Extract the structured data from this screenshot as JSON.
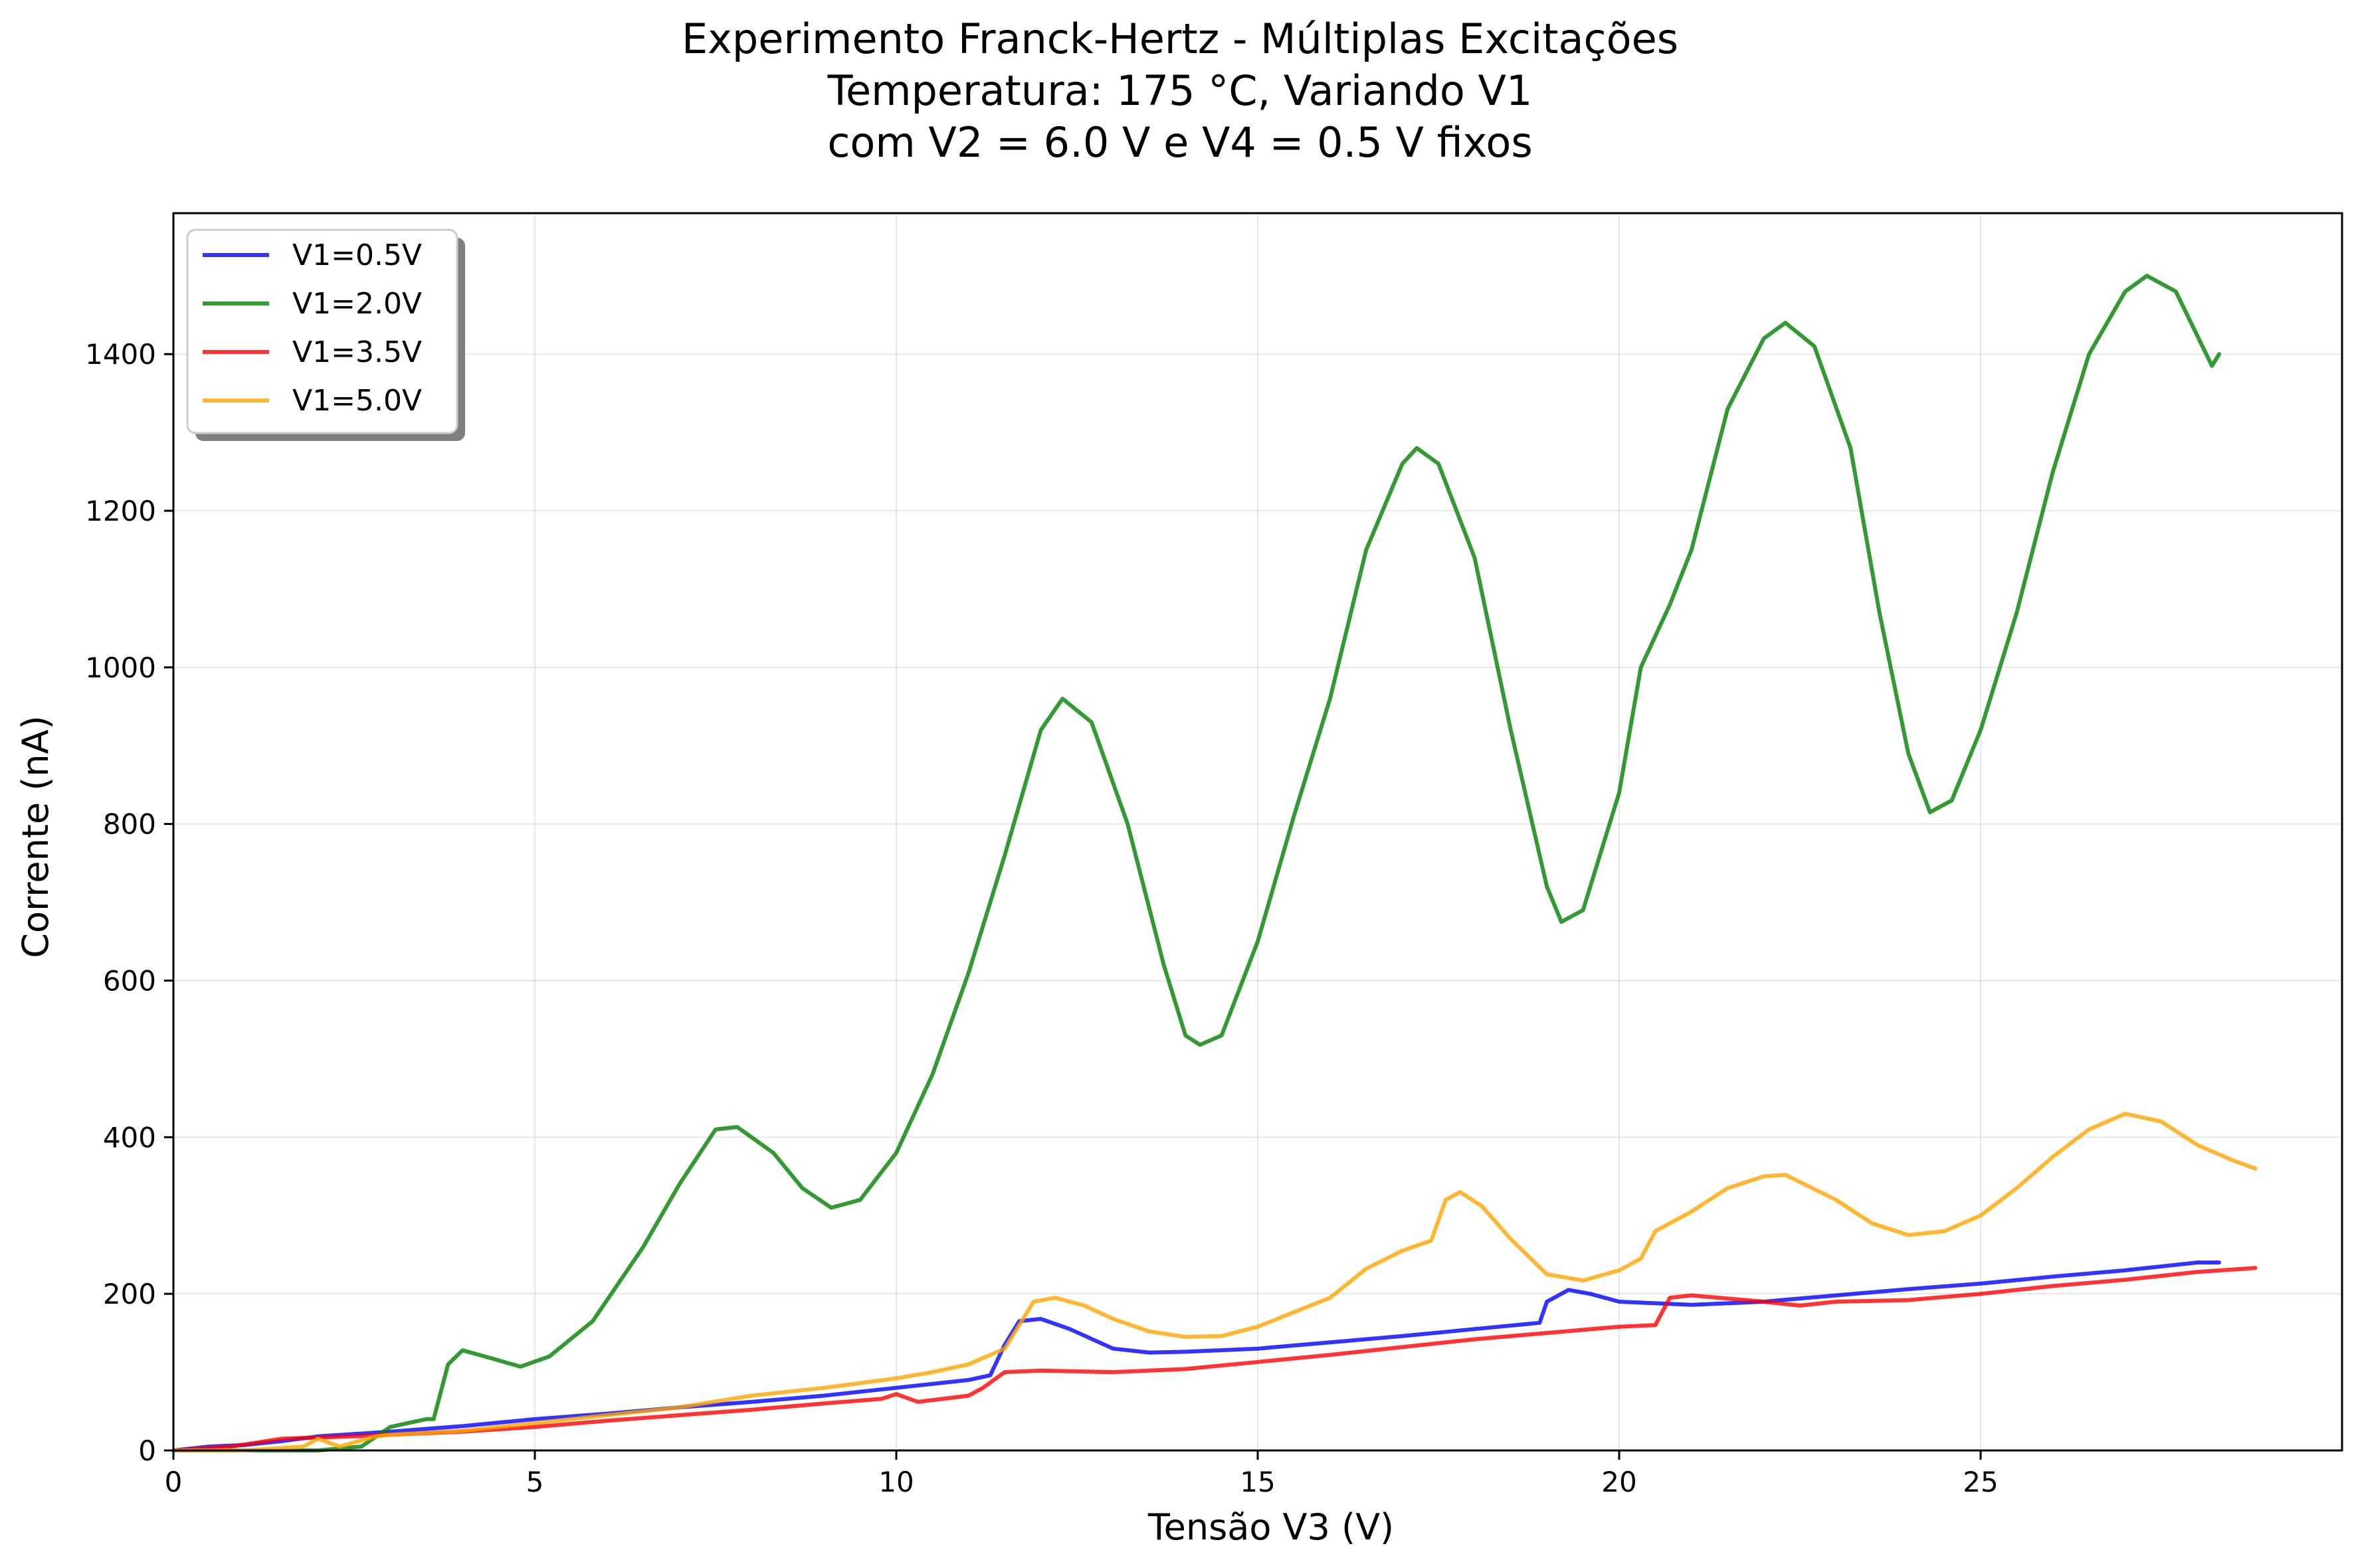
{
  "chart_data": {
    "type": "line",
    "title_lines": [
      "Experimento Franck-Hertz - Múltiplas Excitações",
      "Temperatura: 175 °C, Variando V1",
      "com V2 = 6.0 V e V4 = 0.5 V fixos"
    ],
    "xlabel": "Tensão V3 (V)",
    "ylabel": "Corrente (nA)",
    "xlim": [
      0,
      30
    ],
    "ylim": [
      0,
      1580
    ],
    "xticks": [
      0,
      5,
      10,
      15,
      20,
      25
    ],
    "yticks": [
      0,
      200,
      400,
      600,
      800,
      1000,
      1200,
      1400
    ],
    "grid": true,
    "legend_position": "upper-left",
    "series": [
      {
        "name": "V1=0.5V",
        "color": "#0000ff",
        "points": [
          [
            0,
            0
          ],
          [
            0.5,
            5
          ],
          [
            1,
            7
          ],
          [
            1.5,
            12
          ],
          [
            2,
            18
          ],
          [
            3,
            24
          ],
          [
            4,
            31
          ],
          [
            5,
            40
          ],
          [
            6,
            47
          ],
          [
            7,
            55
          ],
          [
            8,
            62
          ],
          [
            9,
            70
          ],
          [
            10,
            80
          ],
          [
            11,
            90
          ],
          [
            11.3,
            96
          ],
          [
            11.5,
            135
          ],
          [
            11.7,
            165
          ],
          [
            12,
            168
          ],
          [
            12.4,
            155
          ],
          [
            13,
            130
          ],
          [
            13.5,
            125
          ],
          [
            14,
            126
          ],
          [
            15,
            130
          ],
          [
            16,
            138
          ],
          [
            17,
            146
          ],
          [
            18,
            155
          ],
          [
            18.9,
            163
          ],
          [
            19,
            190
          ],
          [
            19.3,
            205
          ],
          [
            19.6,
            200
          ],
          [
            20,
            190
          ],
          [
            21,
            186
          ],
          [
            22,
            190
          ],
          [
            23,
            198
          ],
          [
            24,
            206
          ],
          [
            25,
            213
          ],
          [
            26,
            222
          ],
          [
            27,
            230
          ],
          [
            28,
            240
          ],
          [
            28.3,
            240
          ]
        ]
      },
      {
        "name": "V1=2.0V",
        "color": "#008000",
        "points": [
          [
            0,
            0
          ],
          [
            2,
            0
          ],
          [
            2.6,
            5
          ],
          [
            3,
            30
          ],
          [
            3.5,
            40
          ],
          [
            3.6,
            40
          ],
          [
            3.8,
            110
          ],
          [
            4,
            128
          ],
          [
            4.5,
            115
          ],
          [
            4.8,
            107
          ],
          [
            5.2,
            120
          ],
          [
            5.8,
            165
          ],
          [
            6.5,
            260
          ],
          [
            7,
            340
          ],
          [
            7.5,
            410
          ],
          [
            7.8,
            413
          ],
          [
            8.3,
            380
          ],
          [
            8.7,
            335
          ],
          [
            9.1,
            310
          ],
          [
            9.5,
            320
          ],
          [
            10,
            380
          ],
          [
            10.5,
            480
          ],
          [
            11,
            610
          ],
          [
            11.5,
            760
          ],
          [
            12,
            920
          ],
          [
            12.3,
            960
          ],
          [
            12.7,
            930
          ],
          [
            13.2,
            800
          ],
          [
            13.7,
            620
          ],
          [
            14,
            530
          ],
          [
            14.2,
            518
          ],
          [
            14.5,
            530
          ],
          [
            15,
            650
          ],
          [
            15.5,
            810
          ],
          [
            16,
            960
          ],
          [
            16.5,
            1150
          ],
          [
            17,
            1260
          ],
          [
            17.2,
            1280
          ],
          [
            17.5,
            1260
          ],
          [
            18,
            1140
          ],
          [
            18.5,
            920
          ],
          [
            19,
            720
          ],
          [
            19.2,
            675
          ],
          [
            19.5,
            690
          ],
          [
            20,
            840
          ],
          [
            20.3,
            1000
          ],
          [
            20.7,
            1080
          ],
          [
            21,
            1150
          ],
          [
            21.5,
            1330
          ],
          [
            22,
            1420
          ],
          [
            22.3,
            1440
          ],
          [
            22.7,
            1410
          ],
          [
            23.2,
            1280
          ],
          [
            23.6,
            1070
          ],
          [
            24,
            890
          ],
          [
            24.3,
            815
          ],
          [
            24.6,
            830
          ],
          [
            25,
            920
          ],
          [
            25.5,
            1070
          ],
          [
            26,
            1250
          ],
          [
            26.5,
            1400
          ],
          [
            27,
            1480
          ],
          [
            27.3,
            1500
          ],
          [
            27.7,
            1480
          ],
          [
            28.2,
            1385
          ],
          [
            28.3,
            1400
          ]
        ]
      },
      {
        "name": "V1=3.5V",
        "color": "#ff0000",
        "points": [
          [
            0,
            0
          ],
          [
            0.8,
            5
          ],
          [
            1.5,
            15
          ],
          [
            2.5,
            18
          ],
          [
            3,
            20
          ],
          [
            4,
            24
          ],
          [
            5,
            30
          ],
          [
            6,
            38
          ],
          [
            7,
            45
          ],
          [
            8,
            52
          ],
          [
            9,
            60
          ],
          [
            9.8,
            66
          ],
          [
            10,
            72
          ],
          [
            10.3,
            62
          ],
          [
            11,
            70
          ],
          [
            11.2,
            80
          ],
          [
            11.5,
            100
          ],
          [
            12,
            102
          ],
          [
            13,
            100
          ],
          [
            14,
            104
          ],
          [
            15,
            113
          ],
          [
            16,
            122
          ],
          [
            17,
            132
          ],
          [
            18,
            142
          ],
          [
            19,
            150
          ],
          [
            20,
            158
          ],
          [
            20.5,
            160
          ],
          [
            20.7,
            195
          ],
          [
            21,
            198
          ],
          [
            22,
            190
          ],
          [
            22.5,
            185
          ],
          [
            23,
            190
          ],
          [
            24,
            192
          ],
          [
            25,
            200
          ],
          [
            26,
            210
          ],
          [
            27,
            218
          ],
          [
            28,
            228
          ],
          [
            28.8,
            233
          ]
        ]
      },
      {
        "name": "V1=5.0V",
        "color": "#ffa500",
        "points": [
          [
            0,
            0
          ],
          [
            1,
            0
          ],
          [
            1.8,
            5
          ],
          [
            2,
            15
          ],
          [
            2.3,
            5
          ],
          [
            2.8,
            18
          ],
          [
            3,
            20
          ],
          [
            4,
            25
          ],
          [
            5,
            35
          ],
          [
            6,
            45
          ],
          [
            7,
            55
          ],
          [
            8,
            70
          ],
          [
            9,
            80
          ],
          [
            10,
            92
          ],
          [
            10.5,
            100
          ],
          [
            11,
            110
          ],
          [
            11.5,
            130
          ],
          [
            11.9,
            190
          ],
          [
            12.2,
            195
          ],
          [
            12.6,
            185
          ],
          [
            13,
            168
          ],
          [
            13.5,
            152
          ],
          [
            14,
            145
          ],
          [
            14.5,
            146
          ],
          [
            15,
            158
          ],
          [
            16,
            195
          ],
          [
            16.5,
            232
          ],
          [
            17,
            255
          ],
          [
            17.4,
            268
          ],
          [
            17.6,
            320
          ],
          [
            17.8,
            330
          ],
          [
            18.1,
            312
          ],
          [
            18.5,
            270
          ],
          [
            19,
            225
          ],
          [
            19.5,
            217
          ],
          [
            20,
            230
          ],
          [
            20.3,
            245
          ],
          [
            20.5,
            280
          ],
          [
            21,
            305
          ],
          [
            21.5,
            335
          ],
          [
            22,
            350
          ],
          [
            22.3,
            352
          ],
          [
            23,
            320
          ],
          [
            23.5,
            290
          ],
          [
            24,
            275
          ],
          [
            24.5,
            280
          ],
          [
            25,
            300
          ],
          [
            25.5,
            335
          ],
          [
            26,
            375
          ],
          [
            26.5,
            410
          ],
          [
            27,
            430
          ],
          [
            27.5,
            420
          ],
          [
            28,
            390
          ],
          [
            28.5,
            370
          ],
          [
            28.8,
            360
          ]
        ]
      }
    ]
  }
}
